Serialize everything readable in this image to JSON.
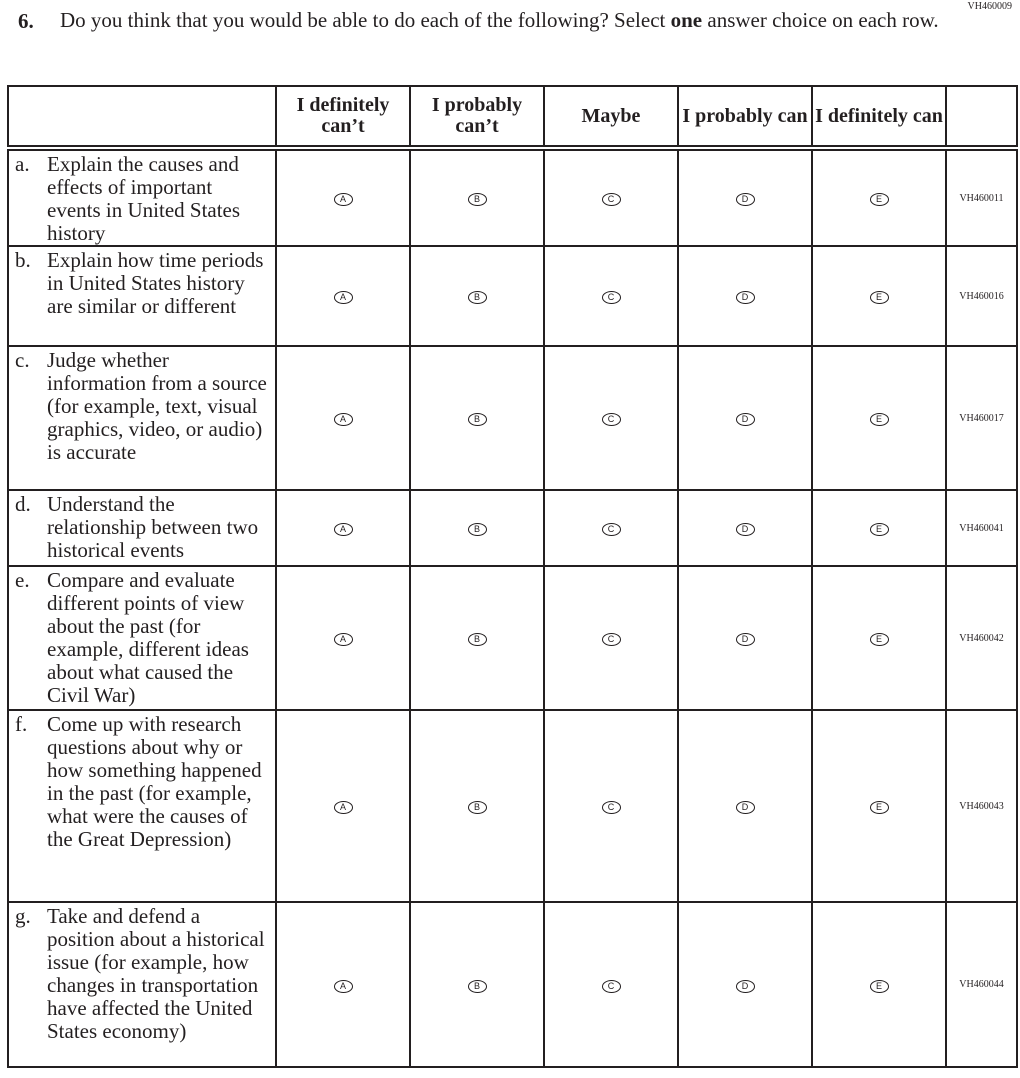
{
  "question": {
    "code": "VH460009",
    "number": "6.",
    "text_before": "Do you think that you would be able to do each of the following? Select ",
    "text_bold": "one",
    "text_after": " answer choice on each row."
  },
  "columns": [
    "I definitely can’t",
    "I probably can’t",
    "Maybe",
    "I probably can",
    "I definitely can"
  ],
  "options": [
    "A",
    "B",
    "C",
    "D",
    "E"
  ],
  "rows": [
    {
      "letter": "a.",
      "text": "Explain the causes and effects of important events in United States history",
      "code": "VH460011"
    },
    {
      "letter": "b.",
      "text": "Explain how time periods in United States history are similar or different",
      "code": "VH460016"
    },
    {
      "letter": "c.",
      "text": "Judge whether information from a source (for example, text, visual graphics, video, or audio) is accurate",
      "code": "VH460017"
    },
    {
      "letter": "d.",
      "text": "Understand the relationship between two historical events",
      "code": "VH460041"
    },
    {
      "letter": "e.",
      "text": "Compare and evaluate different points of view about the past (for example, different ideas about what caused the Civil War)",
      "code": "VH460042"
    },
    {
      "letter": "f.",
      "text": "Come up with research questions about why or how something happened in the past (for example, what were the causes of the Great Depression)",
      "code": "VH460043"
    },
    {
      "letter": "g.",
      "text": "Take and defend a position about a historical issue (for example, how changes in transportation have affected the United States economy)",
      "code": "VH460044"
    }
  ]
}
